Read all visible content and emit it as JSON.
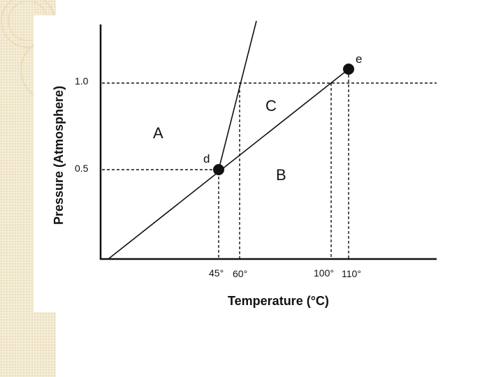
{
  "diagram": {
    "y_axis_label": "Pressure (Atmosphere)",
    "x_axis_label": "Temperature (°C)",
    "y_ticks": [
      "1.0",
      "0.5"
    ],
    "x_ticks": [
      "45°",
      "60°",
      "100°",
      "110°"
    ],
    "regions": {
      "a": "A",
      "b": "B",
      "c": "C"
    },
    "points": {
      "d": "d",
      "e": "e"
    },
    "colors": {
      "line": "#111111",
      "strip": "#f4ecd6"
    }
  }
}
